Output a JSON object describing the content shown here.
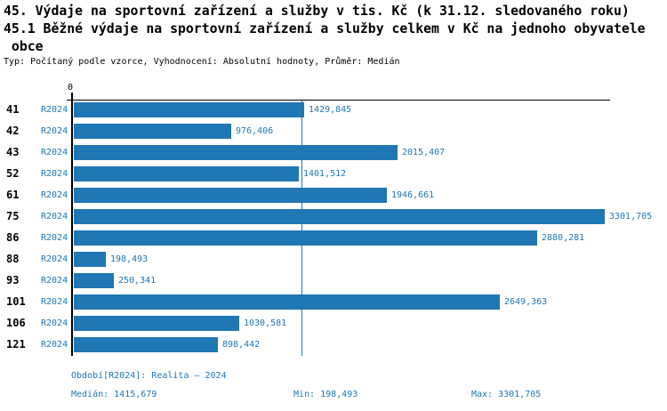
{
  "page": {
    "title_lines": [
      "45. Výdaje na sportovní zařízení a služby v tis. Kč (k 31.12. sledovaného roku)",
      "45.1 Běžné výdaje na sportovní zařízení a služby celkem v Kč na jednoho obyvatele",
      " obce"
    ],
    "meta_line": "Typ: Počítaný podle vzorce, Vyhodnocení: Absolutní hodnoty, Průměr: Medián"
  },
  "colors": {
    "bar": "#1f77b4",
    "accent_text": "#1f77b4",
    "axis": "#000000"
  },
  "chart_data": {
    "type": "bar",
    "orientation": "horizontal",
    "title": "45.1 Běžné výdaje na sportovní zařízení a služby celkem v Kč na jednoho obyvatele obce",
    "series_label": "R2024",
    "x_axis": {
      "origin_label": "0",
      "min": 0,
      "max_bar_value": 3301.705
    },
    "categories": [
      "41",
      "42",
      "43",
      "52",
      "61",
      "75",
      "86",
      "88",
      "93",
      "101",
      "106",
      "121"
    ],
    "values": [
      1429.845,
      976.406,
      2015.407,
      1401.512,
      1946.661,
      3301.705,
      2880.281,
      198.493,
      250.341,
      2649.363,
      1030.581,
      898.442
    ],
    "value_labels": [
      "1429,845",
      "976,406",
      "2015,407",
      "1401,512",
      "1946,661",
      "3301,705",
      "2880,281",
      "198,493",
      "250,341",
      "2649,363",
      "1030,581",
      "898,442"
    ],
    "median": 1415.679,
    "grid": false,
    "legend_position": "none"
  },
  "footer": {
    "period_label": "Období[R2024]: Realita – 2024",
    "median_label": "Medián: 1415,679",
    "min_label": "Min: 198,493",
    "max_label": "Max: 3301,705"
  }
}
